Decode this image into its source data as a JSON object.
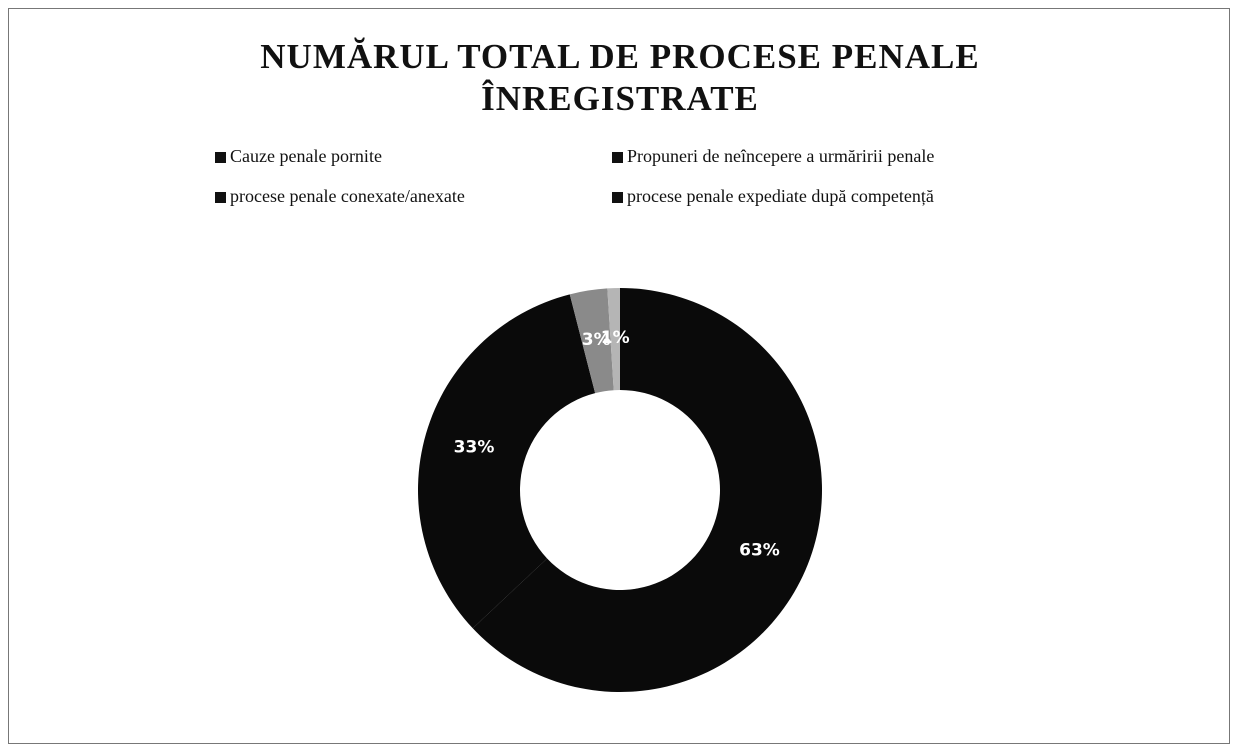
{
  "chart_data": {
    "type": "donut",
    "title": "NUMĂRUL TOTAL DE PROCESE PENALE ÎNREGISTRATE",
    "categories": [
      "Cauze penale pornite",
      "Propuneri de neîncepere a urmăririi penale",
      "procese penale conexate/anexate",
      "procese penale expediate după competență"
    ],
    "values": [
      63,
      33,
      3,
      1
    ],
    "value_labels": [
      "63%",
      "33%",
      "3%",
      "1%"
    ],
    "colors": [
      "#0a0a0a",
      "#0a0a0a",
      "#8a8a8a",
      "#b5b5b5"
    ],
    "legend": "top"
  }
}
